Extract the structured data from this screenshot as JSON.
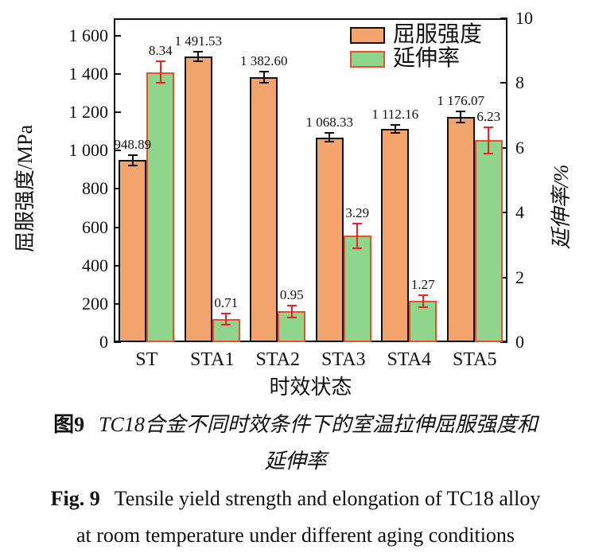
{
  "figure": {
    "caption_zh_label": "图9",
    "caption_zh_line1": "TC18合金不同时效条件下的室温拉伸屈服强度和",
    "caption_zh_line2": "延伸率",
    "caption_en_label": "Fig. 9",
    "caption_en_line1": "Tensile yield strength and elongation of TC18 alloy",
    "caption_en_line2": "at room temperature under different aging conditions"
  },
  "chart_data": {
    "type": "bar",
    "categories": [
      "ST",
      "STA1",
      "STA2",
      "STA3",
      "STA4",
      "STA5"
    ],
    "series": [
      {
        "name": "屈服强度",
        "axis": "left",
        "unit": "MPa",
        "values": [
          948.89,
          1491.53,
          1382.6,
          1068.33,
          1112.16,
          1176.07
        ],
        "value_labels": [
          "948.89",
          "1 491.53",
          "1 382.60",
          "1 068.33",
          "1 112.16",
          "1 176.07"
        ],
        "errors": [
          25,
          24,
          28,
          22,
          20,
          28
        ],
        "fill": "#f2a46c",
        "border": "#111111",
        "error_color": "#111111"
      },
      {
        "name": "延伸率",
        "axis": "right",
        "unit": "%",
        "values": [
          8.34,
          0.71,
          0.95,
          3.29,
          1.27,
          6.23
        ],
        "value_labels": [
          "8.34",
          "0.71",
          "0.95",
          "3.29",
          "1.27",
          "6.23"
        ],
        "errors": [
          0.33,
          0.18,
          0.18,
          0.38,
          0.18,
          0.4
        ],
        "fill": "#8fd68c",
        "border": "#e8502f",
        "error_color": "#ee2222"
      }
    ],
    "left_axis": {
      "title": "屈服强度/MPa",
      "ticks": [
        0,
        200,
        400,
        600,
        800,
        1000,
        1200,
        1400,
        1600
      ],
      "tick_labels": [
        "0",
        "200",
        "400",
        "600",
        "800",
        "1 000",
        "1 200",
        "1 400",
        "1 600"
      ],
      "range": [
        0,
        1690
      ]
    },
    "right_axis": {
      "title": "延伸率/%",
      "ticks": [
        0,
        2,
        4,
        6,
        8,
        10
      ],
      "tick_labels": [
        "0",
        "2",
        "4",
        "6",
        "8",
        "10"
      ],
      "range": [
        0,
        10
      ]
    },
    "x_axis": {
      "title": "时效状态"
    },
    "legend": {
      "position": "top-right"
    },
    "grid": false
  }
}
